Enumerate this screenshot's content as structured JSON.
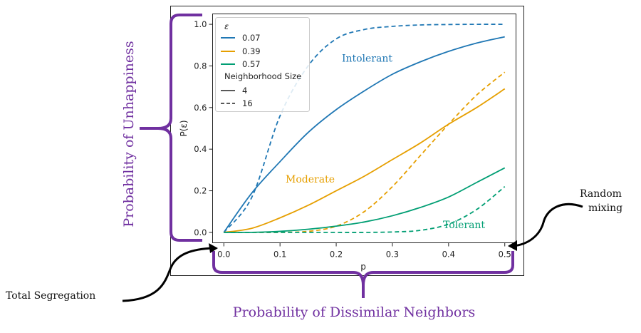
{
  "chart_data": {
    "type": "line",
    "xlabel": "p",
    "ylabel": "P(ε)",
    "xlim": [
      -0.02,
      0.52
    ],
    "ylim": [
      -0.05,
      1.05
    ],
    "xticks": [
      0.0,
      0.1,
      0.2,
      0.3,
      0.4,
      0.5
    ],
    "yticks": [
      0.0,
      0.2,
      0.4,
      0.6,
      0.8,
      1.0
    ],
    "xtick_labels": [
      "0.0",
      "0.1",
      "0.2",
      "0.3",
      "0.4",
      "0.5"
    ],
    "ytick_labels": [
      "0.0",
      "0.2",
      "0.4",
      "0.6",
      "0.8",
      "1.0"
    ],
    "x": [
      0.0,
      0.05,
      0.1,
      0.15,
      0.2,
      0.25,
      0.3,
      0.35,
      0.4,
      0.45,
      0.5
    ],
    "series": [
      {
        "name": "ε=0.07, size 4",
        "epsilon": "0.07",
        "size": "4",
        "color": "#1f77b4",
        "dash": false,
        "values": [
          0.0,
          0.19,
          0.34,
          0.48,
          0.59,
          0.68,
          0.76,
          0.82,
          0.87,
          0.91,
          0.94
        ]
      },
      {
        "name": "ε=0.07, size 16",
        "epsilon": "0.07",
        "size": "16",
        "color": "#1f77b4",
        "dash": true,
        "values": [
          0.0,
          0.17,
          0.56,
          0.8,
          0.93,
          0.975,
          0.99,
          0.997,
          0.999,
          1.0,
          1.0
        ]
      },
      {
        "name": "ε=0.39, size 4",
        "epsilon": "0.39",
        "size": "4",
        "color": "#e69f00",
        "dash": false,
        "values": [
          0.0,
          0.02,
          0.07,
          0.13,
          0.2,
          0.27,
          0.35,
          0.43,
          0.52,
          0.6,
          0.69
        ]
      },
      {
        "name": "ε=0.39, size 16",
        "epsilon": "0.39",
        "size": "16",
        "color": "#e69f00",
        "dash": true,
        "values": [
          0.0,
          0.0,
          0.0,
          0.005,
          0.03,
          0.1,
          0.22,
          0.37,
          0.52,
          0.66,
          0.77
        ]
      },
      {
        "name": "ε=0.57, size 4",
        "epsilon": "0.57",
        "size": "4",
        "color": "#009e73",
        "dash": false,
        "values": [
          0.0,
          0.0,
          0.005,
          0.015,
          0.03,
          0.05,
          0.08,
          0.12,
          0.17,
          0.24,
          0.31
        ]
      },
      {
        "name": "ε=0.57, size 16",
        "epsilon": "0.57",
        "size": "16",
        "color": "#009e73",
        "dash": true,
        "values": [
          0.0,
          0.0,
          0.0,
          0.0,
          0.0,
          0.0,
          0.002,
          0.01,
          0.04,
          0.11,
          0.22
        ]
      }
    ],
    "legend": {
      "placement": "top-left",
      "epsilon_title": "ε",
      "epsilon_entries": [
        {
          "label": "0.07",
          "color": "#1f77b4"
        },
        {
          "label": "0.39",
          "color": "#e69f00"
        },
        {
          "label": "0.57",
          "color": "#009e73"
        }
      ],
      "size_title": "Neighborhood Size",
      "size_entries": [
        {
          "label": "4",
          "dash": false
        },
        {
          "label": "16",
          "dash": true
        }
      ]
    },
    "annotations": {
      "intolerant": {
        "text": "Intolerant",
        "color": "#1f77b4",
        "x": 0.21,
        "y": 0.82
      },
      "moderate": {
        "text": "Moderate",
        "color": "#e69f00",
        "x": 0.11,
        "y": 0.24
      },
      "tolerant": {
        "text": "Tolerant",
        "color": "#009e73",
        "x": 0.39,
        "y": 0.02
      }
    }
  },
  "outer_annotations": {
    "y_brace_label": "Probability of Unhappiness",
    "x_brace_label": "Probability of Dissimilar Neighbors",
    "left_arrow_label": "Total Segregation",
    "right_arrow_label_line1": "Random",
    "right_arrow_label_line2": "mixing",
    "brace_color": "#7030a0"
  }
}
